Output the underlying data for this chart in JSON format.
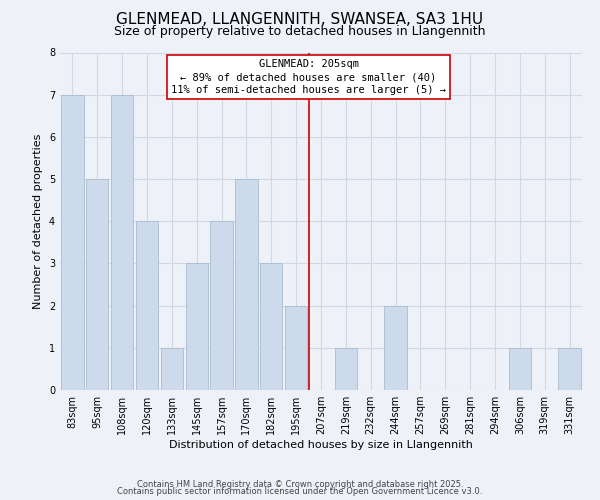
{
  "title": "GLENMEAD, LLANGENNITH, SWANSEA, SA3 1HU",
  "subtitle": "Size of property relative to detached houses in Llangennith",
  "xlabel": "Distribution of detached houses by size in Llangennith",
  "ylabel": "Number of detached properties",
  "bin_labels": [
    "83sqm",
    "95sqm",
    "108sqm",
    "120sqm",
    "133sqm",
    "145sqm",
    "157sqm",
    "170sqm",
    "182sqm",
    "195sqm",
    "207sqm",
    "219sqm",
    "232sqm",
    "244sqm",
    "257sqm",
    "269sqm",
    "281sqm",
    "294sqm",
    "306sqm",
    "319sqm",
    "331sqm"
  ],
  "bar_heights": [
    7,
    5,
    7,
    4,
    1,
    3,
    4,
    5,
    3,
    2,
    0,
    1,
    0,
    2,
    0,
    0,
    0,
    0,
    1,
    0,
    1
  ],
  "bar_color": "#ccdaeb",
  "bar_edgecolor": "#aabcce",
  "vline_index": 10,
  "annotation_line1": "GLENMEAD: 205sqm",
  "annotation_line2": "← 89% of detached houses are smaller (40)",
  "annotation_line3": "11% of semi-detached houses are larger (5) →",
  "annotation_box_color": "#ffffff",
  "annotation_box_edgecolor": "#cc0000",
  "vline_color": "#cc0000",
  "ylim": [
    0,
    8
  ],
  "yticks": [
    0,
    1,
    2,
    3,
    4,
    5,
    6,
    7,
    8
  ],
  "footer_line1": "Contains HM Land Registry data © Crown copyright and database right 2025.",
  "footer_line2": "Contains public sector information licensed under the Open Government Licence v3.0.",
  "background_color": "#eef2f8",
  "plot_bg_color": "#eef2f8",
  "grid_color": "#d0d8e4",
  "title_fontsize": 11,
  "subtitle_fontsize": 9,
  "axis_label_fontsize": 8,
  "tick_fontsize": 7,
  "annotation_fontsize": 7.5,
  "footer_fontsize": 6
}
